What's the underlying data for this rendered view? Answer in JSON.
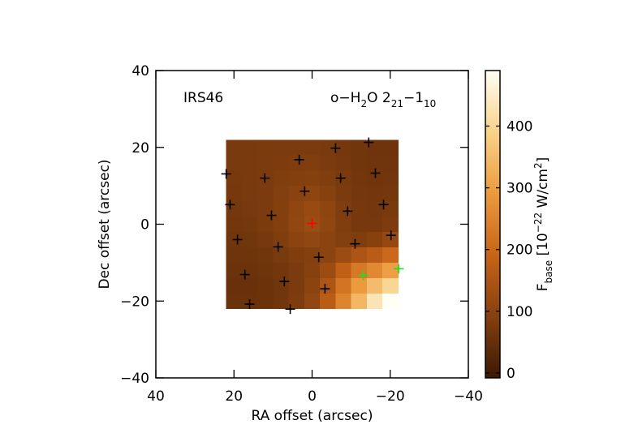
{
  "chart_data": {
    "type": "heatmap",
    "annotation_left": "IRS46",
    "annotation_right": [
      "o−H",
      "2",
      "O 2",
      "21",
      "−1",
      "10"
    ],
    "xlabel": "RA offset (arcsec)",
    "ylabel": "Dec offset (arcsec)",
    "colorbar_label": [
      "F",
      "base",
      " [10",
      "−22",
      " W/cm",
      "2",
      "]"
    ],
    "xlim": [
      40,
      -40
    ],
    "ylim": [
      -40,
      40
    ],
    "xticks": [
      40,
      20,
      0,
      {
        "value": -20,
        "label": "−20"
      },
      {
        "value": -40,
        "label": "−40"
      }
    ],
    "yticks": [
      {
        "value": -40,
        "label": "−40"
      },
      {
        "value": -20,
        "label": "−20"
      },
      0,
      20,
      40
    ],
    "zlim": [
      -8,
      490
    ],
    "zticks": [
      0,
      100,
      200,
      300,
      400
    ],
    "colormap": [
      "#3c1904",
      "#85400f",
      "#c86418",
      "#eb9a3e",
      "#f9d28a",
      "#fffff4"
    ],
    "x": [
      20,
      16,
      12,
      8,
      4,
      0,
      -4,
      -8,
      -12,
      -16,
      -20
    ],
    "y": [
      20,
      16,
      12,
      8,
      4,
      0,
      -4,
      -8,
      -12,
      -16,
      -20
    ],
    "z": [
      [
        75,
        75,
        78,
        80,
        80,
        80,
        75,
        70,
        65,
        62,
        62
      ],
      [
        75,
        76,
        80,
        82,
        84,
        85,
        80,
        72,
        66,
        63,
        63
      ],
      [
        74,
        76,
        80,
        85,
        90,
        92,
        85,
        75,
        68,
        64,
        65
      ],
      [
        72,
        75,
        80,
        88,
        98,
        105,
        95,
        80,
        70,
        68,
        70
      ],
      [
        70,
        73,
        80,
        90,
        108,
        120,
        105,
        85,
        72,
        70,
        75
      ],
      [
        68,
        70,
        78,
        90,
        110,
        125,
        108,
        85,
        72,
        72,
        82
      ],
      [
        64,
        66,
        72,
        85,
        100,
        110,
        100,
        88,
        85,
        95,
        115
      ],
      [
        60,
        60,
        65,
        75,
        85,
        92,
        100,
        125,
        150,
        170,
        200
      ],
      [
        56,
        56,
        60,
        68,
        80,
        95,
        125,
        180,
        230,
        260,
        300
      ],
      [
        54,
        54,
        58,
        66,
        80,
        100,
        150,
        220,
        290,
        350,
        400
      ],
      [
        55,
        55,
        58,
        66,
        82,
        110,
        170,
        250,
        340,
        430,
        490
      ]
    ],
    "markers": [
      {
        "color": "#000000",
        "x": [
          22.0,
          3.3,
          -6.0,
          -14.5,
          12.1,
          1.9,
          -7.3,
          -16.2,
          21.0,
          10.4,
          -9.1,
          -18.3,
          19.1,
          8.7,
          -11.0,
          -20.2,
          17.2,
          7.1,
          -1.7,
          -3.3,
          16.0,
          5.6
        ],
        "y": [
          13.1,
          16.8,
          19.8,
          21.3,
          12.0,
          8.6,
          12.0,
          13.3,
          5.1,
          2.3,
          3.4,
          5.1,
          -4.0,
          -5.9,
          -5.1,
          -2.9,
          -13.1,
          -14.9,
          -8.6,
          -16.8,
          -20.8,
          -22.1
        ]
      },
      {
        "color": "#ff0000",
        "x": [
          0.0
        ],
        "y": [
          0.2
        ]
      },
      {
        "color": "#22dd22",
        "x": [
          -13.1,
          -22.2
        ],
        "y": [
          -13.3,
          -11.6
        ]
      }
    ]
  }
}
